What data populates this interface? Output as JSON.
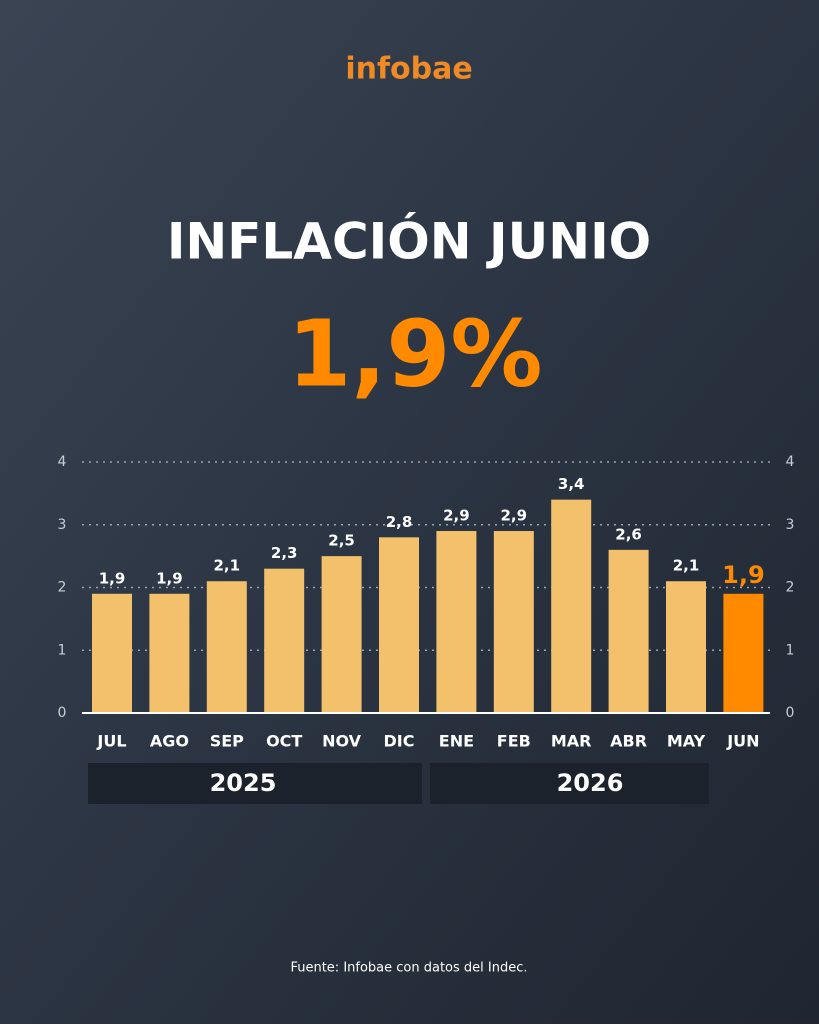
{
  "brand": "infobae",
  "chart_data": {
    "type": "bar",
    "title": "INFLACIÓN JUNIO",
    "headline": "1,9%",
    "categories": [
      "JUL",
      "AGO",
      "SEP",
      "OCT",
      "NOV",
      "DIC",
      "ENE",
      "FEB",
      "MAR",
      "ABR",
      "MAY",
      "JUN"
    ],
    "values": [
      1.9,
      1.9,
      2.1,
      2.3,
      2.5,
      2.8,
      2.9,
      2.9,
      3.4,
      2.6,
      2.1,
      1.9
    ],
    "value_labels": [
      "1,9",
      "1,9",
      "2,1",
      "2,3",
      "2,5",
      "2,8",
      "2,9",
      "2,9",
      "3,4",
      "2,6",
      "2,1",
      "1,9"
    ],
    "colors": [
      "#f3c06c",
      "#f3c06c",
      "#f3c06c",
      "#f3c06c",
      "#f3c06c",
      "#f3c06c",
      "#f3c06c",
      "#f3c06c",
      "#f3c06c",
      "#f3c06c",
      "#f3c06c",
      "#ff8a00"
    ],
    "ylim": [
      0,
      4
    ],
    "yticks": [
      0,
      1,
      2,
      3,
      4
    ],
    "grid": true,
    "year_groups": [
      "2025",
      "2026"
    ]
  },
  "source": "Fuente: Infobae con datos del Indec."
}
